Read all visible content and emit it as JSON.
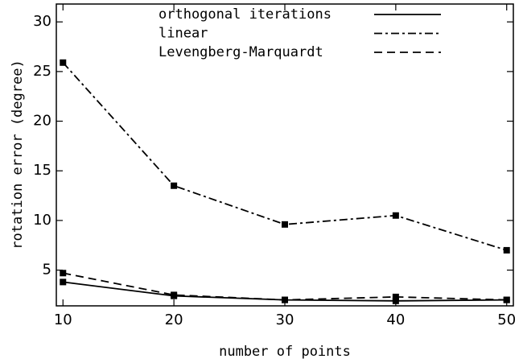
{
  "chart_data": {
    "type": "line",
    "x_label": "number of points",
    "y_label": "rotation error (degree)",
    "x": [
      10,
      20,
      30,
      40,
      50
    ],
    "series": [
      {
        "name": "orthogonal iterations",
        "color": "#000000",
        "dash": "solid",
        "values": [
          3.8,
          2.4,
          2.0,
          1.9,
          2.0
        ]
      },
      {
        "name": "linear",
        "color": "#000000",
        "dash": "dashdot",
        "values": [
          25.9,
          13.5,
          9.6,
          10.5,
          7.0
        ]
      },
      {
        "name": "Levengberg-Marquardt",
        "color": "#000000",
        "dash": "dashed",
        "values": [
          4.7,
          2.5,
          2.0,
          2.3,
          2.0
        ]
      }
    ],
    "xlim": [
      9.4,
      50.6
    ],
    "ylim": [
      1.4,
      31.8
    ],
    "xticks": [
      10,
      20,
      30,
      40,
      50
    ],
    "yticks": [
      5,
      10,
      15,
      20,
      25,
      30
    ],
    "marker": "square",
    "legend": "top"
  }
}
